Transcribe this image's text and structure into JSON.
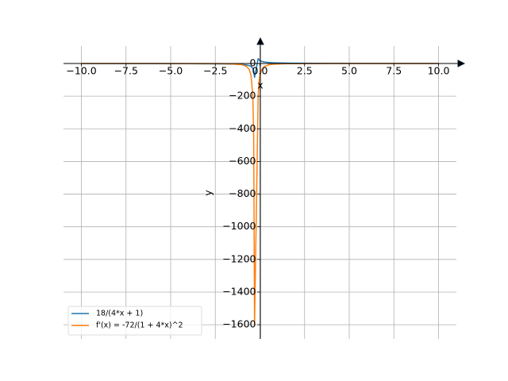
{
  "chart_data": {
    "type": "line",
    "x_label": "x",
    "y_label": "y",
    "x": [
      -10,
      -8,
      -6,
      -4,
      -3,
      -2,
      -1.5,
      -1,
      -0.75,
      -0.6,
      -0.5,
      -0.4,
      -0.35,
      -0.303,
      -0.1,
      -0.05,
      0,
      0.1,
      0.25,
      0.5,
      0.75,
      1,
      1.5,
      2,
      3,
      4,
      6,
      8,
      10
    ],
    "series": [
      {
        "name": "18/(4*x + 1)",
        "color": "#1f77b4",
        "values": [
          -0.462,
          -0.581,
          -0.783,
          -1.2,
          -1.636,
          -2.571,
          -3.6,
          -6,
          -9,
          -12.857,
          -18,
          -30,
          -45,
          -84.91,
          30,
          22.5,
          18,
          12.857,
          9,
          6,
          4.5,
          3.6,
          2.571,
          2,
          1.385,
          1.059,
          0.72,
          0.545,
          0.439
        ]
      },
      {
        "name": "f'(x) = -72/(1 + 4*x)^2",
        "color": "#ff7f0e",
        "values": [
          -0.0473,
          -0.0749,
          -0.136,
          -0.32,
          -0.595,
          -1.469,
          -2.88,
          -8,
          -18,
          -36.73,
          -72,
          -200,
          -450,
          -1602,
          -200,
          -112.5,
          -72,
          -36.73,
          -18,
          -8,
          -4.5,
          -2.88,
          -1.469,
          -0.889,
          -0.426,
          -0.249,
          -0.1152,
          -0.0661,
          -0.0428
        ]
      }
    ],
    "xlim": [
      -11,
      11
    ],
    "xticks": [
      {
        "value": -10,
        "label": "−10.0"
      },
      {
        "value": -7.5,
        "label": "−7.5"
      },
      {
        "value": -5,
        "label": "−5.0"
      },
      {
        "value": -2.5,
        "label": "−2.5"
      },
      {
        "value": 0,
        "label": "0.0"
      },
      2.5,
      {
        "value": 5,
        "label": "5.0"
      },
      7.5,
      {
        "value": 10,
        "label": "10.0"
      }
    ],
    "ylim": [
      -1687,
      107
    ],
    "yticks": [
      {
        "value": -1600,
        "label": "−1600"
      },
      {
        "value": -1400,
        "label": "−1400"
      },
      {
        "value": -1200,
        "label": "−1200"
      },
      {
        "value": -1000,
        "label": "−1000"
      },
      {
        "value": -800,
        "label": "−800"
      },
      {
        "value": -600,
        "label": "−600"
      },
      {
        "value": -400,
        "label": "−400"
      },
      {
        "value": -200,
        "label": "−200"
      },
      0
    ],
    "grid": true,
    "legend": "lower left"
  }
}
